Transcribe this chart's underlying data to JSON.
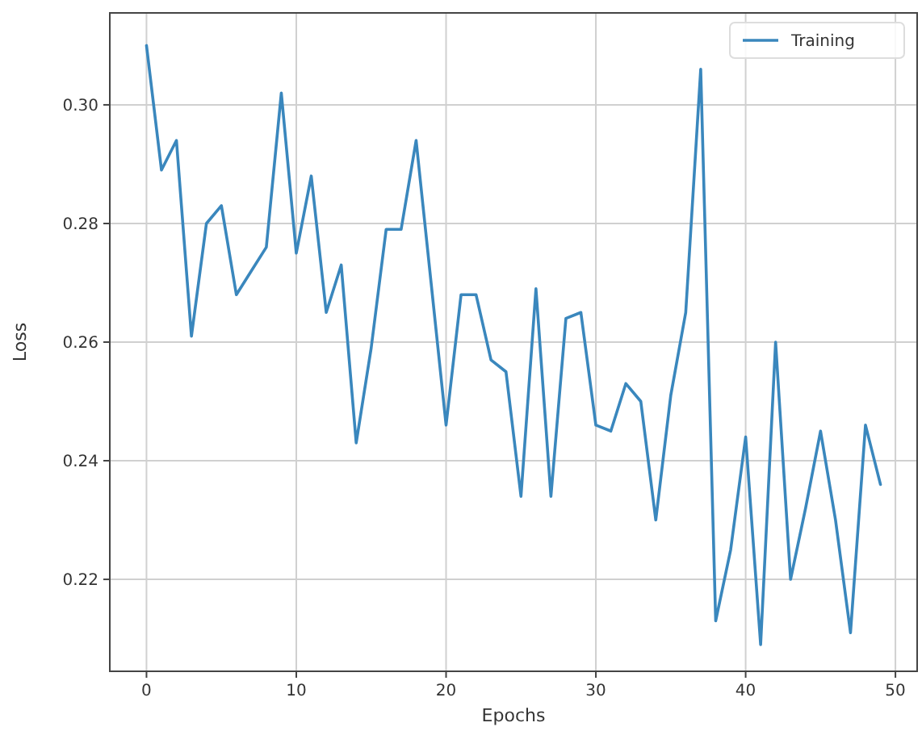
{
  "chart_data": {
    "type": "line",
    "xlabel": "Epochs",
    "ylabel": "Loss",
    "x": [
      0,
      1,
      2,
      3,
      4,
      5,
      6,
      7,
      8,
      9,
      10,
      11,
      12,
      13,
      14,
      15,
      16,
      17,
      18,
      19,
      20,
      21,
      22,
      23,
      24,
      25,
      26,
      27,
      28,
      29,
      30,
      31,
      32,
      33,
      34,
      35,
      36,
      37,
      38,
      39,
      40,
      41,
      42,
      43,
      44,
      45,
      46,
      47,
      48,
      49
    ],
    "series": [
      {
        "name": "Training",
        "color": "#3a87bd",
        "values": [
          0.31,
          0.289,
          0.294,
          0.261,
          0.28,
          0.283,
          0.268,
          0.272,
          0.276,
          0.302,
          0.275,
          0.288,
          0.265,
          0.273,
          0.243,
          0.259,
          0.279,
          0.279,
          0.294,
          0.27,
          0.246,
          0.268,
          0.268,
          0.257,
          0.255,
          0.234,
          0.269,
          0.234,
          0.264,
          0.265,
          0.246,
          0.245,
          0.253,
          0.25,
          0.23,
          0.251,
          0.265,
          0.306,
          0.213,
          0.225,
          0.244,
          0.209,
          0.26,
          0.22,
          0.232,
          0.245,
          0.23,
          0.211,
          0.246,
          0.236
        ]
      }
    ],
    "xlim": [
      -2.45,
      51.45
    ],
    "ylim": [
      0.2045,
      0.3155
    ],
    "xticks": [
      0,
      10,
      20,
      30,
      40,
      50
    ],
    "yticks": [
      {
        "value": 0.22,
        "label": "0.22"
      },
      {
        "value": 0.24,
        "label": "0.24"
      },
      {
        "value": 0.26,
        "label": "0.26"
      },
      {
        "value": 0.28,
        "label": "0.28"
      },
      {
        "value": 0.3,
        "label": "0.30"
      }
    ],
    "grid": true,
    "legend": "top right",
    "line_style": "solid",
    "marker": "none"
  }
}
